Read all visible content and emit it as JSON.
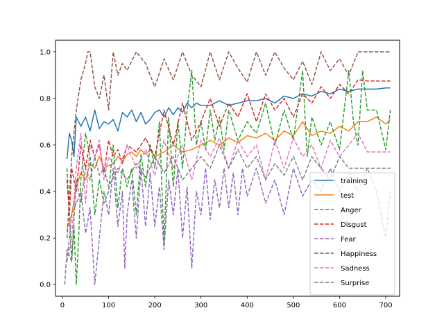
{
  "chart_data": {
    "type": "line",
    "xlim": [
      -15,
      730
    ],
    "ylim": [
      -0.05,
      1.05
    ],
    "xticks": [
      0,
      100,
      200,
      300,
      400,
      500,
      600,
      700
    ],
    "yticks": [
      0.0,
      0.2,
      0.4,
      0.6,
      0.8,
      1.0
    ],
    "xtick_labels": [
      "0",
      "100",
      "200",
      "300",
      "400",
      "500",
      "600",
      "700"
    ],
    "ytick_labels": [
      "0.0",
      "0.2",
      "0.4",
      "0.6",
      "0.8",
      "1.0"
    ],
    "legend": "lower right",
    "grid": false,
    "series": [
      {
        "name": "training",
        "color": "#1f77b4",
        "style": "solid",
        "x": [
          10,
          15,
          20,
          25,
          30,
          40,
          50,
          60,
          70,
          80,
          90,
          100,
          110,
          120,
          130,
          140,
          150,
          160,
          170,
          180,
          190,
          200,
          210,
          220,
          230,
          240,
          250,
          260,
          270,
          280,
          290,
          300,
          320,
          340,
          360,
          380,
          400,
          420,
          440,
          460,
          480,
          500,
          520,
          540,
          560,
          580,
          600,
          620,
          640,
          660,
          680,
          700,
          710
        ],
        "y": [
          0.54,
          0.65,
          0.62,
          0.55,
          0.72,
          0.68,
          0.72,
          0.66,
          0.75,
          0.67,
          0.7,
          0.69,
          0.71,
          0.66,
          0.74,
          0.72,
          0.75,
          0.7,
          0.74,
          0.69,
          0.71,
          0.74,
          0.75,
          0.72,
          0.76,
          0.73,
          0.76,
          0.74,
          0.78,
          0.76,
          0.78,
          0.77,
          0.77,
          0.79,
          0.77,
          0.78,
          0.79,
          0.79,
          0.8,
          0.78,
          0.81,
          0.8,
          0.82,
          0.81,
          0.83,
          0.82,
          0.84,
          0.83,
          0.84,
          0.84,
          0.84,
          0.845,
          0.845
        ]
      },
      {
        "name": "test",
        "color": "#ff7f0e",
        "style": "solid",
        "x": [
          10,
          20,
          30,
          40,
          50,
          60,
          70,
          80,
          90,
          100,
          110,
          120,
          130,
          140,
          150,
          160,
          170,
          180,
          190,
          200,
          220,
          240,
          260,
          280,
          300,
          320,
          340,
          360,
          380,
          400,
          420,
          440,
          460,
          480,
          500,
          520,
          540,
          560,
          580,
          600,
          620,
          640,
          660,
          680,
          700,
          710
        ],
        "y": [
          0.24,
          0.3,
          0.42,
          0.48,
          0.45,
          0.52,
          0.5,
          0.55,
          0.5,
          0.51,
          0.52,
          0.55,
          0.53,
          0.56,
          0.57,
          0.55,
          0.58,
          0.56,
          0.58,
          0.55,
          0.57,
          0.6,
          0.57,
          0.58,
          0.6,
          0.62,
          0.6,
          0.63,
          0.61,
          0.64,
          0.63,
          0.65,
          0.62,
          0.66,
          0.64,
          0.7,
          0.64,
          0.66,
          0.65,
          0.68,
          0.66,
          0.7,
          0.7,
          0.72,
          0.69,
          0.71
        ]
      },
      {
        "name": "Anger",
        "color": "#2ca02c",
        "style": "dashed",
        "x": [
          10,
          20,
          25,
          30,
          35,
          40,
          50,
          60,
          70,
          80,
          90,
          100,
          110,
          120,
          130,
          140,
          150,
          160,
          170,
          180,
          190,
          200,
          210,
          220,
          230,
          240,
          250,
          260,
          270,
          280,
          290,
          300,
          310,
          320,
          330,
          340,
          350,
          360,
          380,
          400,
          420,
          440,
          460,
          480,
          500,
          520,
          530,
          540,
          560,
          580,
          600,
          620,
          630,
          640,
          650,
          660,
          680,
          700,
          710
        ],
        "y": [
          0.5,
          0.1,
          0.25,
          0.0,
          0.2,
          0.45,
          0.65,
          0.55,
          0.3,
          0.45,
          0.35,
          0.4,
          0.6,
          0.33,
          0.5,
          0.42,
          0.5,
          0.3,
          0.56,
          0.42,
          0.6,
          0.5,
          0.7,
          0.17,
          0.72,
          0.42,
          0.7,
          0.5,
          0.75,
          0.92,
          0.6,
          0.7,
          0.58,
          0.75,
          0.62,
          0.72,
          0.58,
          0.75,
          0.62,
          0.7,
          0.65,
          0.78,
          0.6,
          0.75,
          0.62,
          0.92,
          0.55,
          0.72,
          0.6,
          0.7,
          0.58,
          0.92,
          0.7,
          0.6,
          0.92,
          0.75,
          0.75,
          0.58,
          0.75
        ]
      },
      {
        "name": "Disgust",
        "color": "#d62728",
        "style": "dashed",
        "x": [
          10,
          15,
          20,
          30,
          40,
          50,
          60,
          70,
          80,
          90,
          100,
          110,
          120,
          130,
          140,
          160,
          180,
          200,
          220,
          240,
          260,
          280,
          300,
          320,
          340,
          360,
          380,
          400,
          420,
          440,
          460,
          480,
          500,
          520,
          540,
          560,
          580,
          600,
          620,
          640,
          660,
          680,
          700,
          710
        ],
        "y": [
          0.45,
          0.3,
          0.5,
          0.4,
          0.6,
          0.5,
          0.62,
          0.55,
          0.6,
          0.48,
          0.62,
          0.55,
          0.58,
          0.52,
          0.6,
          0.57,
          0.63,
          0.55,
          0.75,
          0.6,
          0.78,
          0.62,
          0.7,
          0.8,
          0.68,
          0.78,
          0.72,
          0.82,
          0.7,
          0.82,
          0.75,
          0.8,
          0.72,
          0.82,
          0.78,
          0.85,
          0.8,
          0.86,
          0.82,
          0.88,
          0.875,
          0.875,
          0.875,
          0.875
        ]
      },
      {
        "name": "Fear",
        "color": "#9467bd",
        "style": "dashed",
        "x": [
          10,
          20,
          30,
          40,
          50,
          60,
          70,
          80,
          90,
          100,
          110,
          120,
          130,
          135,
          140,
          150,
          160,
          170,
          180,
          190,
          200,
          210,
          220,
          230,
          240,
          250,
          260,
          270,
          280,
          290,
          300,
          310,
          320,
          330,
          340,
          350,
          360,
          370,
          380,
          390,
          400,
          420,
          440,
          460,
          480,
          500,
          520,
          540,
          560,
          580,
          600,
          620,
          640,
          660,
          680,
          700,
          710
        ],
        "y": [
          0.1,
          0.3,
          0.35,
          0.4,
          0.22,
          0.33,
          0.0,
          0.2,
          0.4,
          0.3,
          0.5,
          0.25,
          0.4,
          0.07,
          0.3,
          0.45,
          0.2,
          0.5,
          0.25,
          0.48,
          0.25,
          0.42,
          0.15,
          0.45,
          0.3,
          0.5,
          0.2,
          0.42,
          0.07,
          0.4,
          0.3,
          0.5,
          0.28,
          0.45,
          0.33,
          0.5,
          0.33,
          0.48,
          0.3,
          0.5,
          0.38,
          0.5,
          0.35,
          0.45,
          0.3,
          0.5,
          0.38,
          0.45,
          0.4,
          0.5,
          0.4,
          0.48,
          0.4,
          0.5,
          0.4,
          0.2,
          0.4
        ]
      },
      {
        "name": "Happiness",
        "color": "#8c564b",
        "style": "dashed",
        "x": [
          10,
          20,
          30,
          40,
          50,
          55,
          60,
          70,
          80,
          90,
          100,
          110,
          120,
          130,
          140,
          160,
          180,
          200,
          220,
          240,
          260,
          280,
          300,
          320,
          340,
          360,
          380,
          400,
          420,
          440,
          460,
          480,
          500,
          520,
          540,
          560,
          580,
          600,
          620,
          640,
          660,
          680,
          700,
          710
        ],
        "y": [
          0.2,
          0.55,
          0.75,
          0.88,
          0.95,
          1.0,
          1.0,
          0.85,
          0.8,
          0.9,
          0.75,
          1.0,
          0.9,
          0.95,
          0.92,
          1.0,
          0.95,
          0.85,
          0.97,
          0.88,
          1.0,
          0.9,
          0.85,
          1.0,
          0.88,
          1.0,
          0.93,
          0.87,
          1.0,
          0.9,
          1.0,
          0.93,
          0.88,
          0.96,
          0.86,
          1.0,
          0.92,
          0.97,
          0.9,
          1.0,
          1.0,
          1.0,
          1.0,
          1.0
        ]
      },
      {
        "name": "Sadness",
        "color": "#e377c2",
        "style": "dashed",
        "x": [
          10,
          20,
          30,
          40,
          50,
          60,
          70,
          80,
          90,
          100,
          120,
          140,
          160,
          180,
          200,
          220,
          240,
          260,
          280,
          300,
          320,
          340,
          360,
          380,
          400,
          420,
          440,
          460,
          480,
          500,
          520,
          540,
          560,
          580,
          600,
          620,
          640,
          660,
          680,
          700,
          710
        ],
        "y": [
          0.1,
          0.2,
          0.5,
          0.65,
          0.35,
          0.6,
          0.55,
          0.62,
          0.45,
          0.55,
          0.48,
          0.6,
          0.5,
          0.58,
          0.47,
          0.62,
          0.5,
          0.6,
          0.45,
          0.62,
          0.55,
          0.63,
          0.5,
          0.62,
          0.55,
          0.6,
          0.45,
          0.62,
          0.5,
          0.63,
          0.55,
          0.6,
          0.5,
          0.62,
          0.55,
          0.6,
          0.65,
          0.57,
          0.57,
          0.57,
          0.57
        ]
      },
      {
        "name": "Surprise",
        "color": "#7f7f7f",
        "style": "dashed",
        "x": [
          5,
          10,
          20,
          30,
          40,
          50,
          60,
          70,
          80,
          90,
          100,
          120,
          140,
          160,
          180,
          200,
          220,
          240,
          260,
          280,
          300,
          320,
          340,
          360,
          380,
          400,
          420,
          440,
          460,
          480,
          500,
          520,
          540,
          560,
          580,
          600,
          620,
          640,
          660,
          680,
          700,
          710
        ],
        "y": [
          0.0,
          0.15,
          0.1,
          0.45,
          0.35,
          0.5,
          0.45,
          0.55,
          0.47,
          0.5,
          0.42,
          0.5,
          0.45,
          0.52,
          0.46,
          0.55,
          0.48,
          0.55,
          0.45,
          0.5,
          0.55,
          0.5,
          0.6,
          0.5,
          0.58,
          0.5,
          0.55,
          0.45,
          0.52,
          0.47,
          0.55,
          0.45,
          0.55,
          0.5,
          0.45,
          0.55,
          0.5,
          0.5,
          0.5,
          0.5,
          0.5,
          0.5
        ]
      }
    ]
  }
}
